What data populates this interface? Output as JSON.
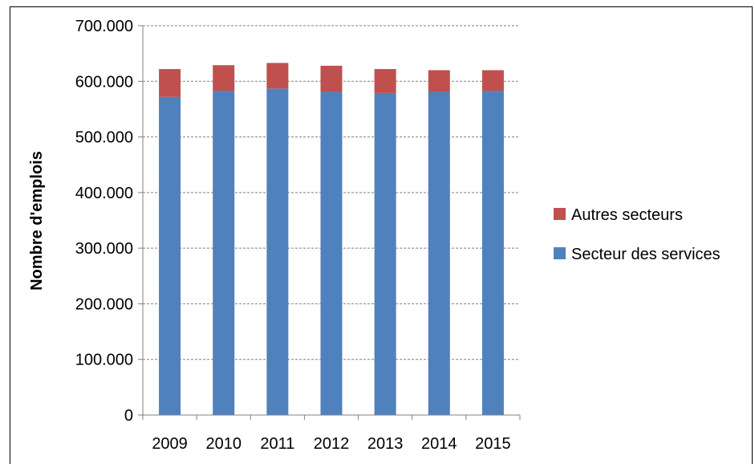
{
  "chart_data": {
    "type": "bar",
    "stacked": true,
    "categories": [
      "2009",
      "2010",
      "2011",
      "2012",
      "2013",
      "2014",
      "2015"
    ],
    "series": [
      {
        "name": "Secteur des services",
        "color": "#4f81bd",
        "values": [
          572000,
          583000,
          587000,
          581000,
          579000,
          581000,
          583000
        ]
      },
      {
        "name": "Autres secteurs",
        "color": "#c0504d",
        "values": [
          50000,
          46000,
          46000,
          47000,
          43000,
          39000,
          37000
        ]
      }
    ],
    "title": "",
    "xlabel": "",
    "ylabel": "Nombre d'emplois",
    "ylim": [
      0,
      700000
    ],
    "yticks": [
      0,
      100000,
      200000,
      300000,
      400000,
      500000,
      600000,
      700000
    ],
    "ytick_labels": [
      "0",
      "100.000",
      "200.000",
      "300.000",
      "400.000",
      "500.000",
      "600.000",
      "700.000"
    ],
    "grid": true,
    "legend_position": "right",
    "legend": [
      "Autres secteurs",
      "Secteur des services"
    ]
  }
}
